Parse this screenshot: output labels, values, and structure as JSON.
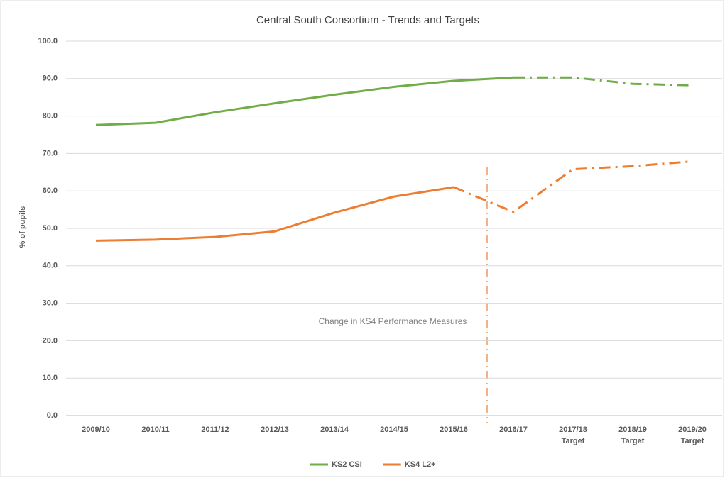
{
  "chart_data": {
    "type": "line",
    "title": "Central South Consortium - Trends and Targets",
    "y_label": "% of pupils",
    "annotation": "Change in KS4 Performance Measures",
    "categories": [
      "2009/10",
      "2010/11",
      "2011/12",
      "2012/13",
      "2013/14",
      "2014/15",
      "2015/16",
      "2016/17",
      "2017/18 Target",
      "2018/19 Target",
      "2019/20 Target"
    ],
    "series": [
      {
        "name": "KS2 CSI",
        "color": "#70ad47",
        "dashed_from": 7,
        "values": [
          77.6,
          78.2,
          81.0,
          83.4,
          85.7,
          87.8,
          89.4,
          90.3,
          90.3,
          88.6,
          88.2
        ]
      },
      {
        "name": "KS4 L2+",
        "color": "#ed7d31",
        "dashed_from": 6,
        "values": [
          46.7,
          47.0,
          47.7,
          49.2,
          54.2,
          58.5,
          61.0,
          54.4,
          65.8,
          66.6,
          67.9
        ]
      }
    ],
    "ylim": [
      0,
      100
    ],
    "yticks": [
      {
        "value": 0,
        "label": "0.0"
      },
      {
        "value": 10,
        "label": "10.0"
      },
      {
        "value": 20,
        "label": "20.0"
      },
      {
        "value": 30,
        "label": "30.0"
      },
      {
        "value": 40,
        "label": "40.0"
      },
      {
        "value": 50,
        "label": "50.0"
      },
      {
        "value": 60,
        "label": "60.0"
      },
      {
        "value": 70,
        "label": "70.0"
      },
      {
        "value": 80,
        "label": "80.0"
      },
      {
        "value": 90,
        "label": "90.0"
      },
      {
        "value": 100,
        "label": "100.0"
      }
    ],
    "grid": true,
    "legend": "bottom"
  }
}
